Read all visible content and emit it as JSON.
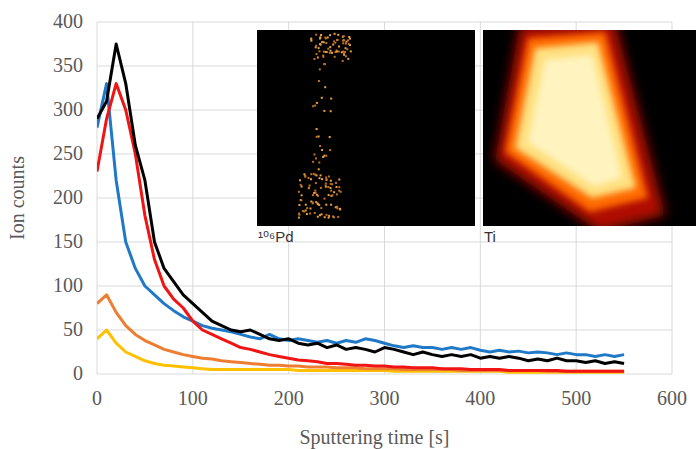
{
  "chart_data": {
    "type": "line",
    "xlabel": "Sputtering time [s]",
    "ylabel": "Ion counts",
    "annotations": [
      "¹⁰⁶Pd",
      "Ti"
    ],
    "x": [
      0,
      10,
      20,
      30,
      40,
      50,
      60,
      70,
      80,
      90,
      100,
      110,
      120,
      130,
      140,
      150,
      160,
      170,
      180,
      190,
      200,
      210,
      220,
      230,
      240,
      250,
      260,
      270,
      280,
      290,
      300,
      310,
      320,
      330,
      340,
      350,
      360,
      370,
      380,
      390,
      400,
      410,
      420,
      430,
      440,
      450,
      460,
      470,
      480,
      490,
      500,
      510,
      520,
      530,
      540,
      550
    ],
    "xlim": [
      0,
      600
    ],
    "xticks": [
      0,
      100,
      200,
      300,
      400,
      500,
      600
    ],
    "ylim": [
      0,
      400
    ],
    "yticks": [
      0,
      50,
      100,
      150,
      200,
      250,
      300,
      350,
      400
    ],
    "grid": true,
    "series": [
      {
        "color": "#ffc000",
        "values": [
          40,
          50,
          35,
          25,
          20,
          15,
          12,
          10,
          9,
          8,
          7,
          6,
          5,
          5,
          5,
          5,
          5,
          5,
          5,
          5,
          5,
          4,
          4,
          4,
          4,
          4,
          4,
          4,
          4,
          4,
          4,
          3,
          3,
          3,
          3,
          3,
          3,
          3,
          3,
          3,
          3,
          3,
          3,
          2,
          2,
          2,
          2,
          2,
          2,
          2,
          2,
          2,
          2,
          2,
          2,
          2
        ]
      },
      {
        "color": "#ed7d31",
        "values": [
          80,
          90,
          70,
          55,
          45,
          38,
          33,
          28,
          25,
          22,
          20,
          18,
          17,
          15,
          14,
          13,
          12,
          11,
          10,
          10,
          9,
          9,
          8,
          8,
          8,
          7,
          7,
          7,
          6,
          6,
          6,
          6,
          5,
          5,
          5,
          5,
          5,
          5,
          4,
          4,
          4,
          4,
          4,
          4,
          4,
          4,
          4,
          3,
          3,
          3,
          3,
          3,
          3,
          3,
          3,
          3
        ]
      },
      {
        "color": "#2079c7",
        "values": [
          280,
          330,
          220,
          150,
          120,
          100,
          90,
          80,
          72,
          65,
          60,
          55,
          52,
          50,
          48,
          45,
          42,
          40,
          45,
          40,
          38,
          40,
          38,
          36,
          38,
          35,
          38,
          36,
          40,
          38,
          35,
          32,
          30,
          32,
          30,
          30,
          28,
          30,
          28,
          30,
          27,
          25,
          27,
          25,
          26,
          24,
          25,
          24,
          22,
          24,
          22,
          22,
          20,
          22,
          20,
          22
        ]
      },
      {
        "color": "#f01414",
        "values": [
          230,
          290,
          330,
          300,
          250,
          180,
          130,
          100,
          85,
          75,
          60,
          50,
          45,
          40,
          35,
          30,
          28,
          25,
          22,
          20,
          18,
          16,
          15,
          14,
          12,
          12,
          11,
          10,
          10,
          9,
          9,
          8,
          8,
          7,
          7,
          7,
          6,
          6,
          6,
          5,
          5,
          5,
          5,
          4,
          4,
          4,
          4,
          4,
          4,
          3,
          3,
          3,
          3,
          3,
          3,
          3
        ]
      },
      {
        "color": "#000000",
        "values": [
          290,
          310,
          375,
          330,
          260,
          220,
          150,
          120,
          105,
          90,
          80,
          70,
          60,
          55,
          50,
          48,
          50,
          45,
          40,
          38,
          40,
          35,
          33,
          35,
          30,
          33,
          28,
          30,
          28,
          25,
          30,
          28,
          25,
          22,
          25,
          22,
          20,
          22,
          20,
          22,
          18,
          20,
          18,
          20,
          18,
          15,
          17,
          15,
          18,
          15,
          15,
          13,
          15,
          12,
          14,
          12
        ]
      }
    ]
  }
}
